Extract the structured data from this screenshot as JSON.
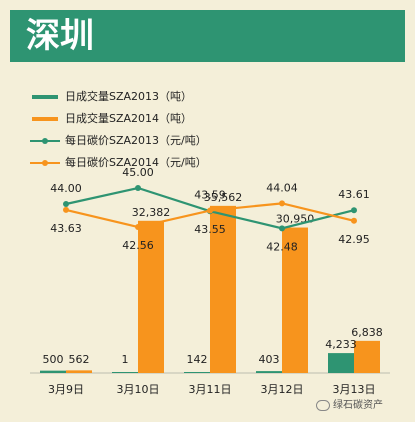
{
  "title": "深圳",
  "legend": [
    {
      "label": "日成交量SZA2013（吨）",
      "kind": "bar",
      "color": "#2e9472"
    },
    {
      "label": "日成交量SZA2014（吨）",
      "kind": "bar",
      "color": "#f7941d"
    },
    {
      "label": "每日碳价SZA2013（元/吨）",
      "kind": "line",
      "color": "#2e9472"
    },
    {
      "label": "每日碳价SZA2014（元/吨）",
      "kind": "line",
      "color": "#f7941d"
    }
  ],
  "watermark": "绿石碳资产",
  "chart_data": {
    "type": "bar",
    "title": "深圳",
    "categories": [
      "3月9日",
      "3月10日",
      "3月11日",
      "3月12日",
      "3月13日"
    ],
    "series": [
      {
        "name": "日成交量SZA2013（吨）",
        "kind": "bar",
        "color": "#2e9472",
        "values": [
          500,
          1,
          142,
          403,
          4233
        ],
        "labels": [
          "500",
          "1",
          "142",
          "403",
          "4,233"
        ]
      },
      {
        "name": "日成交量SZA2014（吨）",
        "kind": "bar",
        "color": "#f7941d",
        "values": [
          562,
          32382,
          35562,
          30950,
          6838
        ],
        "labels": [
          "562",
          "32,382",
          "35,562",
          "30,950",
          "6,838"
        ]
      },
      {
        "name": "每日碳价SZA2013（元/吨）",
        "kind": "line",
        "color": "#2e9472",
        "values": [
          44.0,
          45.0,
          43.55,
          42.48,
          43.61
        ],
        "labels": [
          "44.00",
          "45.00",
          "43.55",
          "42.48",
          "43.61"
        ]
      },
      {
        "name": "每日碳价SZA2014（元/吨）",
        "kind": "line",
        "color": "#f7941d",
        "values": [
          43.63,
          42.56,
          43.59,
          44.04,
          42.95
        ],
        "labels": [
          "43.63",
          "42.56",
          "43.59",
          "44.04",
          "42.95"
        ]
      }
    ],
    "bar_ylim": [
      0,
      40000
    ],
    "line_ylim": [
      40,
      48
    ],
    "grid": false,
    "legend_position": "top-left"
  }
}
